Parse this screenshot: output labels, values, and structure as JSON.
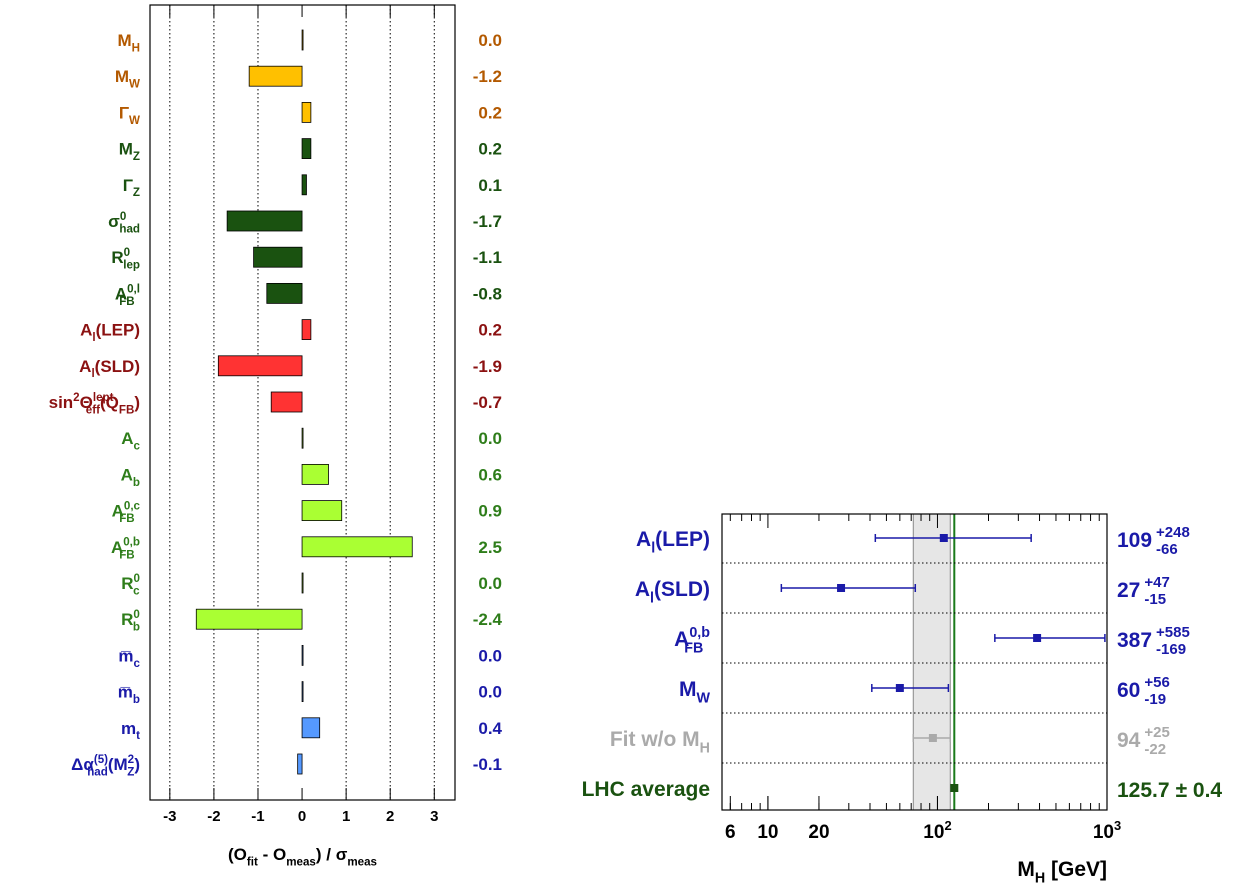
{
  "chart_data": [
    {
      "type": "pull-bar",
      "categories": [
        "M_{H}",
        "M_{W}",
        "Γ_{W}",
        "M_{Z}",
        "Γ_{Z}",
        "σ^{0}_{had}",
        "R^{0}_{lep}",
        "A^{0,l}_{FB}",
        "A_{l}(LEP)",
        "A_{l}(SLD)",
        "sin^{2}Θ^{lept}_{eff}(Q_{FB})",
        "A_{c}",
        "A_{b}",
        "A^{0,c}_{FB}",
        "A^{0,b}_{FB}",
        "R^{0}_{c}",
        "R^{0}_{b}",
        "m̅_{c}",
        "m̅_{b}",
        "m_{t}",
        "Δα^{(5)}_{had}(M^{2}_{Z})"
      ],
      "values": [
        0.0,
        -1.2,
        0.2,
        0.2,
        0.1,
        -1.7,
        -1.1,
        -0.8,
        0.2,
        -1.9,
        -0.7,
        0.0,
        0.6,
        0.9,
        2.5,
        0.0,
        -2.4,
        0.0,
        0.0,
        0.4,
        -0.1
      ],
      "value_labels": [
        "0.0",
        "-1.2",
        "0.2",
        "0.2",
        "0.1",
        "-1.7",
        "-1.1",
        "-0.8",
        "0.2",
        "-1.9",
        "-0.7",
        "0.0",
        "0.6",
        "0.9",
        "2.5",
        "0.0",
        "-2.4",
        "0.0",
        "0.0",
        "0.4",
        "-0.1"
      ],
      "colors": [
        "#ffc000",
        "#ffc000",
        "#ffc000",
        "#1a5210",
        "#1a5210",
        "#1a5210",
        "#1a5210",
        "#1a5210",
        "#ff3333",
        "#ff3333",
        "#ff3333",
        "#aaff33",
        "#aaff33",
        "#aaff33",
        "#aaff33",
        "#aaff33",
        "#aaff33",
        "#5599ff",
        "#5599ff",
        "#5599ff",
        "#5599ff"
      ],
      "label_colors": [
        "#b35900",
        "#b35900",
        "#b35900",
        "#1a5210",
        "#1a5210",
        "#1a5210",
        "#1a5210",
        "#1a5210",
        "#8b1111",
        "#8b1111",
        "#8b1111",
        "#2e7d1a",
        "#2e7d1a",
        "#2e7d1a",
        "#2e7d1a",
        "#2e7d1a",
        "#2e7d1a",
        "#1a1aa8",
        "#1a1aa8",
        "#1a1aa8",
        "#1a1aa8"
      ],
      "xlim": [
        -3.45,
        3.47
      ],
      "xticks": [
        -3,
        -2,
        -1,
        0,
        1,
        2,
        3
      ],
      "grid": true,
      "x_label": "(O_{fit} - O_{meas}) / σ_{meas}"
    },
    {
      "type": "error-point",
      "categories": [
        "A_{l}(LEP)",
        "A_{l}(SLD)",
        "A^{0,b}_{FB}",
        "M_{W}",
        "Fit w/o M_{H}",
        "LHC average"
      ],
      "values": [
        109,
        27,
        387,
        60,
        94,
        125.7
      ],
      "value_labels": [
        "109",
        "27",
        "387",
        "60",
        "94",
        "125.7"
      ],
      "errors_plus": [
        248,
        47,
        585,
        56,
        25,
        0.4
      ],
      "errors_minus": [
        66,
        15,
        169,
        19,
        22,
        0.4
      ],
      "error_plus_labels": [
        "+248",
        "+47",
        "+585",
        "+56",
        "+25",
        "± 0.4"
      ],
      "error_minus_labels": [
        "-66",
        "-15",
        "-169",
        "-19",
        "-22",
        null
      ],
      "colors": [
        "#1a1aa8",
        "#1a1aa8",
        "#1a1aa8",
        "#1a1aa8",
        "#aaaaaa",
        "#1a5210"
      ],
      "band_color": "#e6e6e6",
      "line_color": "#1a7a1a",
      "xlim": [
        5.36,
        1000
      ],
      "log_x": true,
      "xticks": [
        6,
        10,
        20,
        {
          "value": 100,
          "label": "10^{2}"
        },
        {
          "value": 1000,
          "label": "10^{3}"
        }
      ],
      "x_label": "M_{H} [GeV]"
    }
  ]
}
